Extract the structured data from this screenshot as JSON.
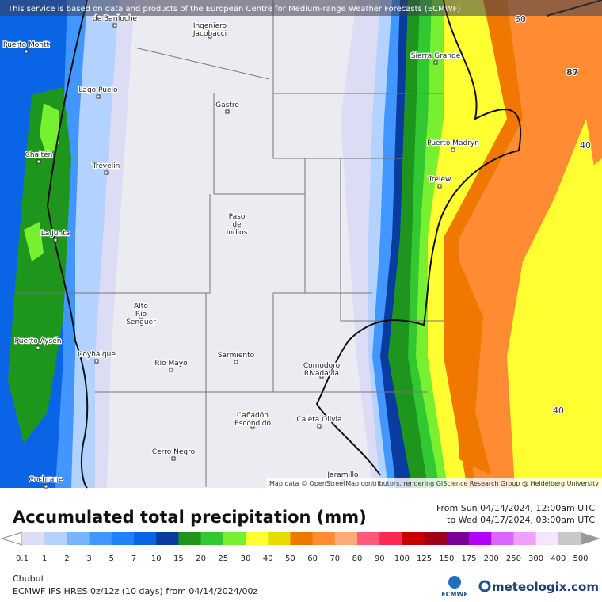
{
  "header": {
    "notice": "This service is based on data and products of the European Centre for Medium-range Weather Forecasts (ECMWF)"
  },
  "map": {
    "cities": [
      "de Bariloche",
      "Ingeniero Jacobacci",
      "Puerto Montt",
      "Sierra Grande",
      "Lago Puelo",
      "Gastre",
      "Puerto Madryn",
      "Chaitén",
      "Trevelin",
      "Trelew",
      "Paso de Indios",
      "La Junta",
      "Alto Río Senguer",
      "Puerto Aysén",
      "Coyhaique",
      "Río Mayo",
      "Sarmiento",
      "Comodoro Rivadavia",
      "Cañadón Escondido",
      "Caleta Olivia",
      "Cerro Negro",
      "Cochrane",
      "Jaramillo"
    ],
    "values": [
      "87",
      "60",
      "40",
      "40"
    ],
    "attribution": "Map data © OpenStreetMap contributors, rendering GIScience Research Group @ Heidelberg University"
  },
  "legend": {
    "title": "Accumulated total precipitation (mm)",
    "period": [
      "From Sun 04/14/2024, 12:00am UTC",
      "to Wed 04/17/2024, 03:00am UTC"
    ],
    "labels": [
      "0.1",
      "1",
      "2",
      "3",
      "5",
      "7",
      "10",
      "15",
      "20",
      "25",
      "30",
      "40",
      "50",
      "60",
      "70",
      "80",
      "90",
      "100",
      "125",
      "150",
      "175",
      "200",
      "250",
      "300",
      "400",
      "500"
    ],
    "colors": [
      "#dcdcf5",
      "#b4d2ff",
      "#78b4ff",
      "#4196ff",
      "#1e82ff",
      "#0a64e6",
      "#0a3ca0",
      "#1e961e",
      "#32c832",
      "#78f032",
      "#ffff32",
      "#e6dc00",
      "#f07800",
      "#ff8c32",
      "#ffaa78",
      "#ff5a78",
      "#ff2850",
      "#c80000",
      "#a00014",
      "#780096",
      "#b400ff",
      "#dc64ff",
      "#f0a0ff",
      "#f5e6ff",
      "#c8c8c8"
    ]
  },
  "footer": {
    "region": "Chubut",
    "model": "ECMWF IFS HRES 0z/12z (10 days) from  04/14/2024/00z",
    "ecmwf": "ECMWF",
    "brand": "meteologix.com"
  }
}
